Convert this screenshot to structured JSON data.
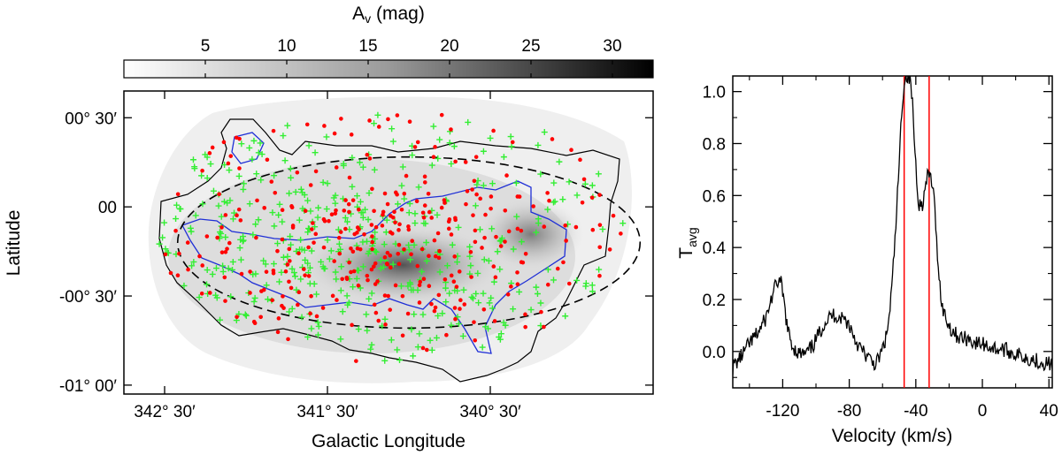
{
  "chart_data": [
    {
      "type": "map",
      "colorbar": {
        "label_main": "A",
        "label_sub": "v",
        "label_unit": " (mag)",
        "range": [
          0,
          32.5
        ],
        "ticks": [
          5,
          10,
          15,
          20,
          25,
          30
        ],
        "tick_labels": [
          "5",
          "10",
          "15",
          "20",
          "25",
          "30"
        ],
        "colormap": "gray_reversed"
      },
      "xlabel": "Galactic Longitude",
      "ylabel": "Latitude",
      "xlim_deg": [
        342.75,
        339.5
      ],
      "ylim_deg": [
        -1.05,
        0.65
      ],
      "x_ticks": [
        342.5,
        341.5,
        340.5
      ],
      "x_tick_labels": [
        "342° 30′",
        "341° 30′",
        "340° 30′"
      ],
      "y_ticks": [
        0.5,
        0.0,
        -0.5,
        -1.0
      ],
      "y_tick_labels": [
        "00° 30′",
        "00",
        "-00° 30′",
        "-01° 00′"
      ],
      "overlays": {
        "contour_low_color": "#000000",
        "contour_high_color": "#1f2fd6",
        "ellipse_style": "dashed",
        "ellipse_center_deg": [
          341.0,
          -0.2
        ],
        "ellipse_radii_deg": [
          1.42,
          0.48
        ],
        "red_dot_color": "#ff0000",
        "green_plus_color": "#33ee33"
      }
    },
    {
      "type": "line",
      "xlabel": "Velocity (km/s)",
      "ylabel_main": "T",
      "ylabel_sub": "avg",
      "xlim": [
        -150,
        42
      ],
      "ylim": [
        -0.14,
        1.06
      ],
      "x_ticks": [
        -120,
        -80,
        -40,
        0,
        40
      ],
      "x_tick_labels": [
        "-120",
        "-80",
        "-40",
        "0",
        "40"
      ],
      "y_ticks": [
        0.0,
        0.2,
        0.4,
        0.6,
        0.8,
        1.0
      ],
      "y_tick_labels": [
        "0.0",
        "0.2",
        "0.4",
        "0.6",
        "0.8",
        "1.0"
      ],
      "vlines": [
        -47,
        -32
      ],
      "vline_color": "#ff0000",
      "series": [
        {
          "x": [
            -150,
            -145,
            -140,
            -135,
            -130,
            -126,
            -123,
            -121,
            -119,
            -117,
            -114,
            -110,
            -106,
            -102,
            -98,
            -95,
            -92,
            -90,
            -88,
            -86,
            -84,
            -82,
            -79,
            -76,
            -72,
            -68,
            -64,
            -61,
            -58,
            -56,
            -54,
            -52,
            -50,
            -49,
            -48,
            -47,
            -46,
            -45,
            -44,
            -43,
            -42,
            -41,
            -40,
            -39,
            -38,
            -37,
            -36,
            -35,
            -34,
            -33,
            -32,
            -31,
            -30,
            -29,
            -28,
            -27,
            -26,
            -25,
            -24,
            -22,
            -20,
            -18,
            -15,
            -12,
            -8,
            -4,
            0,
            4,
            8,
            12,
            16,
            20,
            25,
            30,
            35,
            42
          ],
          "y": [
            -0.06,
            -0.02,
            0.03,
            0.07,
            0.13,
            0.22,
            0.27,
            0.26,
            0.18,
            0.08,
            0.02,
            -0.01,
            -0.01,
            0.02,
            0.07,
            0.11,
            0.13,
            0.14,
            0.14,
            0.13,
            0.13,
            0.12,
            0.09,
            0.04,
            0.0,
            -0.03,
            -0.05,
            -0.01,
            0.05,
            0.13,
            0.28,
            0.48,
            0.72,
            0.86,
            0.97,
            1.03,
            1.06,
            1.06,
            1.05,
            1.03,
            0.95,
            0.83,
            0.72,
            0.62,
            0.57,
            0.56,
            0.57,
            0.6,
            0.64,
            0.67,
            0.68,
            0.67,
            0.64,
            0.58,
            0.48,
            0.38,
            0.29,
            0.22,
            0.17,
            0.13,
            0.1,
            0.08,
            0.06,
            0.05,
            0.05,
            0.03,
            0.03,
            0.02,
            0.01,
            0.01,
            0.0,
            -0.01,
            -0.02,
            -0.03,
            -0.04,
            -0.05
          ],
          "color": "#000000"
        }
      ]
    }
  ]
}
